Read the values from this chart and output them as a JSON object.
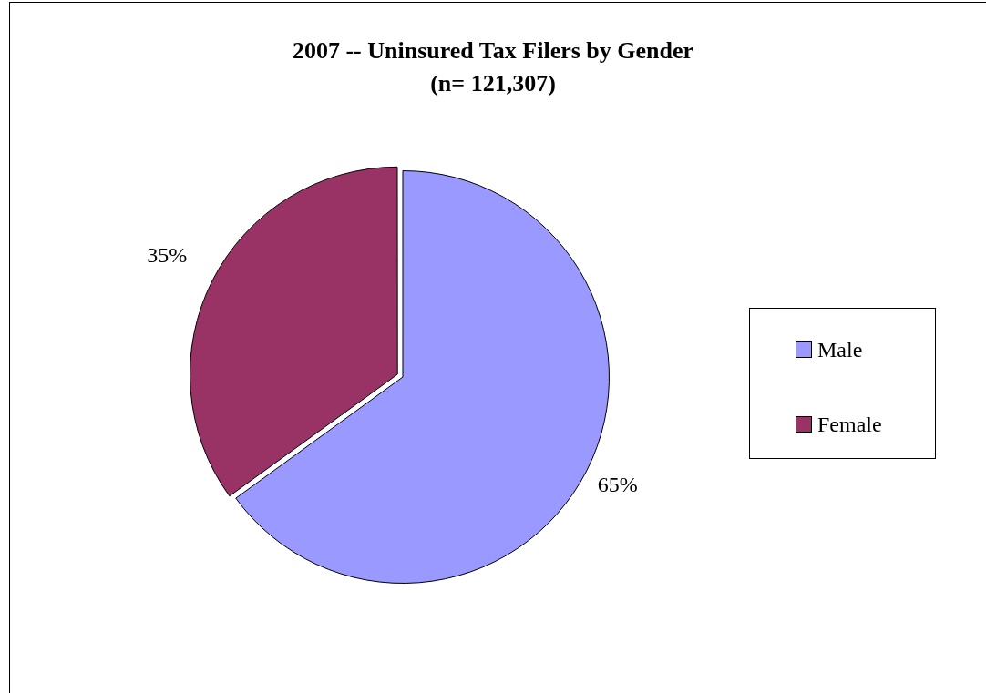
{
  "chart_data": {
    "type": "pie",
    "title": "2007 -- Uninsured Tax Filers by Gender",
    "subtitle": "(n= 121,307)",
    "categories": [
      "Male",
      "Female"
    ],
    "values": [
      65,
      35
    ],
    "colors": [
      "#9999ff",
      "#993366"
    ],
    "value_labels": [
      "65%",
      "35%"
    ],
    "legend": "right"
  }
}
